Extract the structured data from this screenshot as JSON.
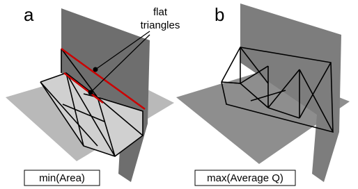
{
  "panels": [
    {
      "label": "a",
      "caption": "min(Area)"
    },
    {
      "label": "b",
      "caption": "max(Average Q)"
    }
  ],
  "annotation": {
    "lines": [
      "flat",
      "triangles"
    ]
  }
}
